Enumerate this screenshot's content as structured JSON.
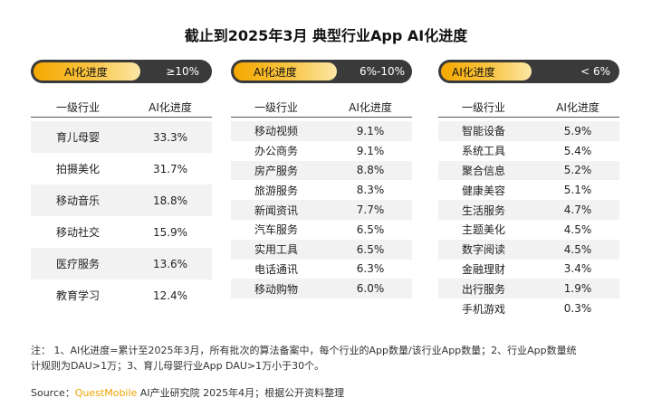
{
  "title": "截止到2025年3月 典型行业App AI化进度",
  "chart_data": [
    {
      "type": "table",
      "badge_label": "AI化进度",
      "range_label": "≥10%",
      "headers": [
        "一级行业",
        "AI化进度"
      ],
      "rows": [
        {
          "industry": "育儿母婴",
          "value": "33.3%"
        },
        {
          "industry": "拍摄美化",
          "value": "31.7%"
        },
        {
          "industry": "移动音乐",
          "value": "18.8%"
        },
        {
          "industry": "移动社交",
          "value": "15.9%"
        },
        {
          "industry": "医疗服务",
          "value": "13.6%"
        },
        {
          "industry": "教育学习",
          "value": "12.4%"
        }
      ]
    },
    {
      "type": "table",
      "badge_label": "AI化进度",
      "range_label": "6%-10%",
      "headers": [
        "一级行业",
        "AI化进度"
      ],
      "rows": [
        {
          "industry": "移动视频",
          "value": "9.1%"
        },
        {
          "industry": "办公商务",
          "value": "9.1%"
        },
        {
          "industry": "房产服务",
          "value": "8.8%"
        },
        {
          "industry": "旅游服务",
          "value": "8.3%"
        },
        {
          "industry": "新闻资讯",
          "value": "7.7%"
        },
        {
          "industry": "汽车服务",
          "value": "6.5%"
        },
        {
          "industry": "实用工具",
          "value": "6.5%"
        },
        {
          "industry": "电话通讯",
          "value": "6.3%"
        },
        {
          "industry": "移动购物",
          "value": "6.0%"
        }
      ]
    },
    {
      "type": "table",
      "badge_label": "AI化进度",
      "range_label": "< 6%",
      "headers": [
        "一级行业",
        "AI化进度"
      ],
      "rows": [
        {
          "industry": "智能设备",
          "value": "5.9%"
        },
        {
          "industry": "系统工具",
          "value": "5.4%"
        },
        {
          "industry": "聚合信息",
          "value": "5.2%"
        },
        {
          "industry": "健康美容",
          "value": "5.1%"
        },
        {
          "industry": "生活服务",
          "value": "4.7%"
        },
        {
          "industry": "主题美化",
          "value": "4.5%"
        },
        {
          "industry": "数字阅读",
          "value": "4.5%"
        },
        {
          "industry": "金融理财",
          "value": "3.4%"
        },
        {
          "industry": "出行服务",
          "value": "1.9%"
        },
        {
          "industry": "手机游戏",
          "value": "0.3%"
        }
      ]
    }
  ],
  "footnote": {
    "line1": "注： 1、AI化进度=累计至2025年3月，所有批次的算法备案中，每个行业的App数量/该行业App数量；2、行业App数量统",
    "line2": "计规则为DAU>1万；3、育儿母婴行业App DAU>1万小于30个。"
  },
  "source": {
    "prefix": "Source：",
    "brand": "QuestMobile",
    "suffix": " AI产业研究院 2025年4月；根据公开资料整理"
  },
  "colors": {
    "badge_dark": "#3a3a3a",
    "badge_gold": "#f6a800",
    "brand": "#f0a400",
    "stripe": "#f2f2f2"
  }
}
